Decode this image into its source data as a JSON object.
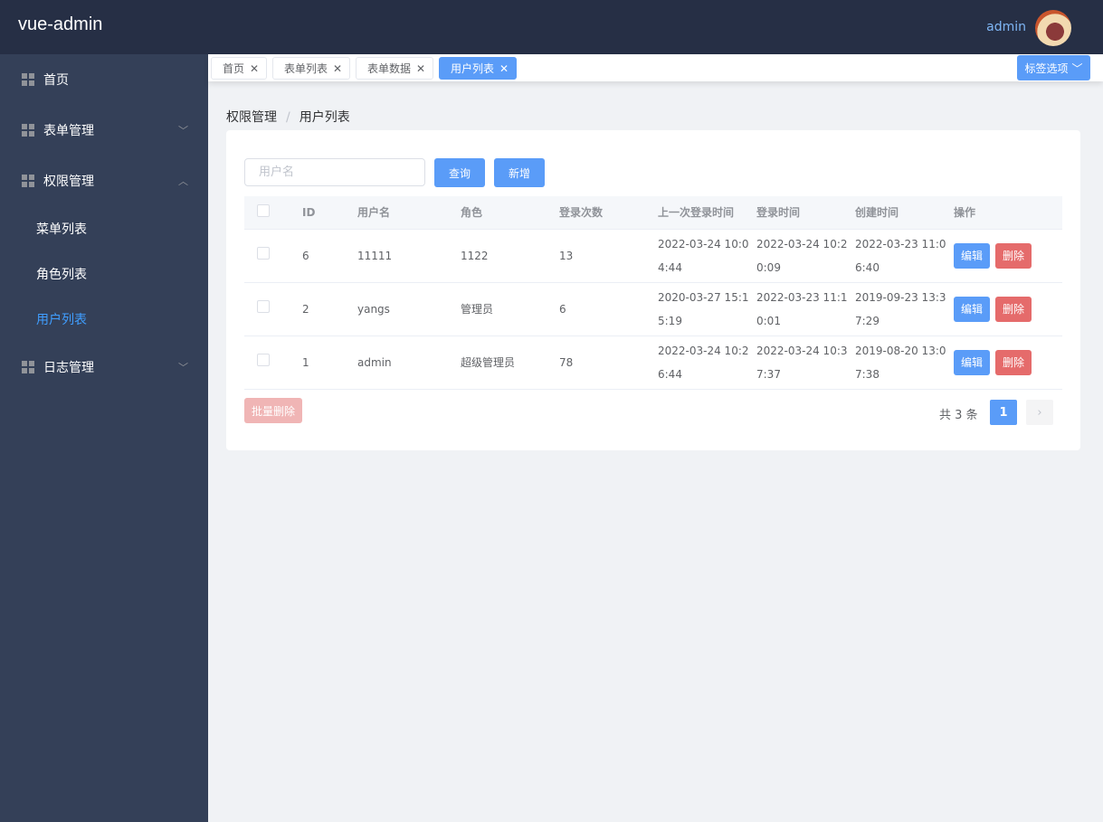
{
  "header": {
    "logo": "vue-admin",
    "user": "admin"
  },
  "sidebar": {
    "items": [
      {
        "label": "首页",
        "icon": "grid-icon"
      },
      {
        "label": "表单管理",
        "icon": "grid-icon",
        "chevron": "down"
      },
      {
        "label": "权限管理",
        "icon": "grid-icon",
        "chevron": "up",
        "children": [
          {
            "label": "菜单列表"
          },
          {
            "label": "角色列表"
          },
          {
            "label": "用户列表",
            "active": true
          }
        ]
      },
      {
        "label": "日志管理",
        "icon": "grid-icon",
        "chevron": "down"
      }
    ]
  },
  "tags": [
    {
      "label": "首页"
    },
    {
      "label": "表单列表"
    },
    {
      "label": "表单数据"
    },
    {
      "label": "用户列表",
      "active": true
    }
  ],
  "tag_options": "标签选项",
  "breadcrumb": [
    "权限管理",
    "用户列表"
  ],
  "search": {
    "placeholder": "用户名",
    "value": ""
  },
  "buttons": {
    "query": "查询",
    "add": "新增",
    "batch_delete": "批量删除",
    "edit": "编辑",
    "delete": "删除"
  },
  "table": {
    "columns": [
      "ID",
      "用户名",
      "角色",
      "登录次数",
      "上一次登录时间",
      "登录时间",
      "创建时间",
      "操作"
    ],
    "rows": [
      [
        "6",
        "11111",
        "1122",
        "13",
        "2022-03-24 10:04:44",
        "2022-03-24 10:20:09",
        "2022-03-23 11:06:40"
      ],
      [
        "2",
        "yangs",
        "管理员",
        "6",
        "2020-03-27 15:15:19",
        "2022-03-23 11:10:01",
        "2019-09-23 13:37:29"
      ],
      [
        "1",
        "admin",
        "超级管理员",
        "78",
        "2022-03-24 10:26:44",
        "2022-03-24 10:37:37",
        "2019-08-20 13:07:38"
      ]
    ]
  },
  "pagination": {
    "total": "共 3 条",
    "current": "1"
  },
  "colors": {
    "header": "#262f45",
    "sidebar": "#344058",
    "primary": "#5a9cf8",
    "danger": "#e56b6b",
    "active_menu": "#409eff"
  }
}
